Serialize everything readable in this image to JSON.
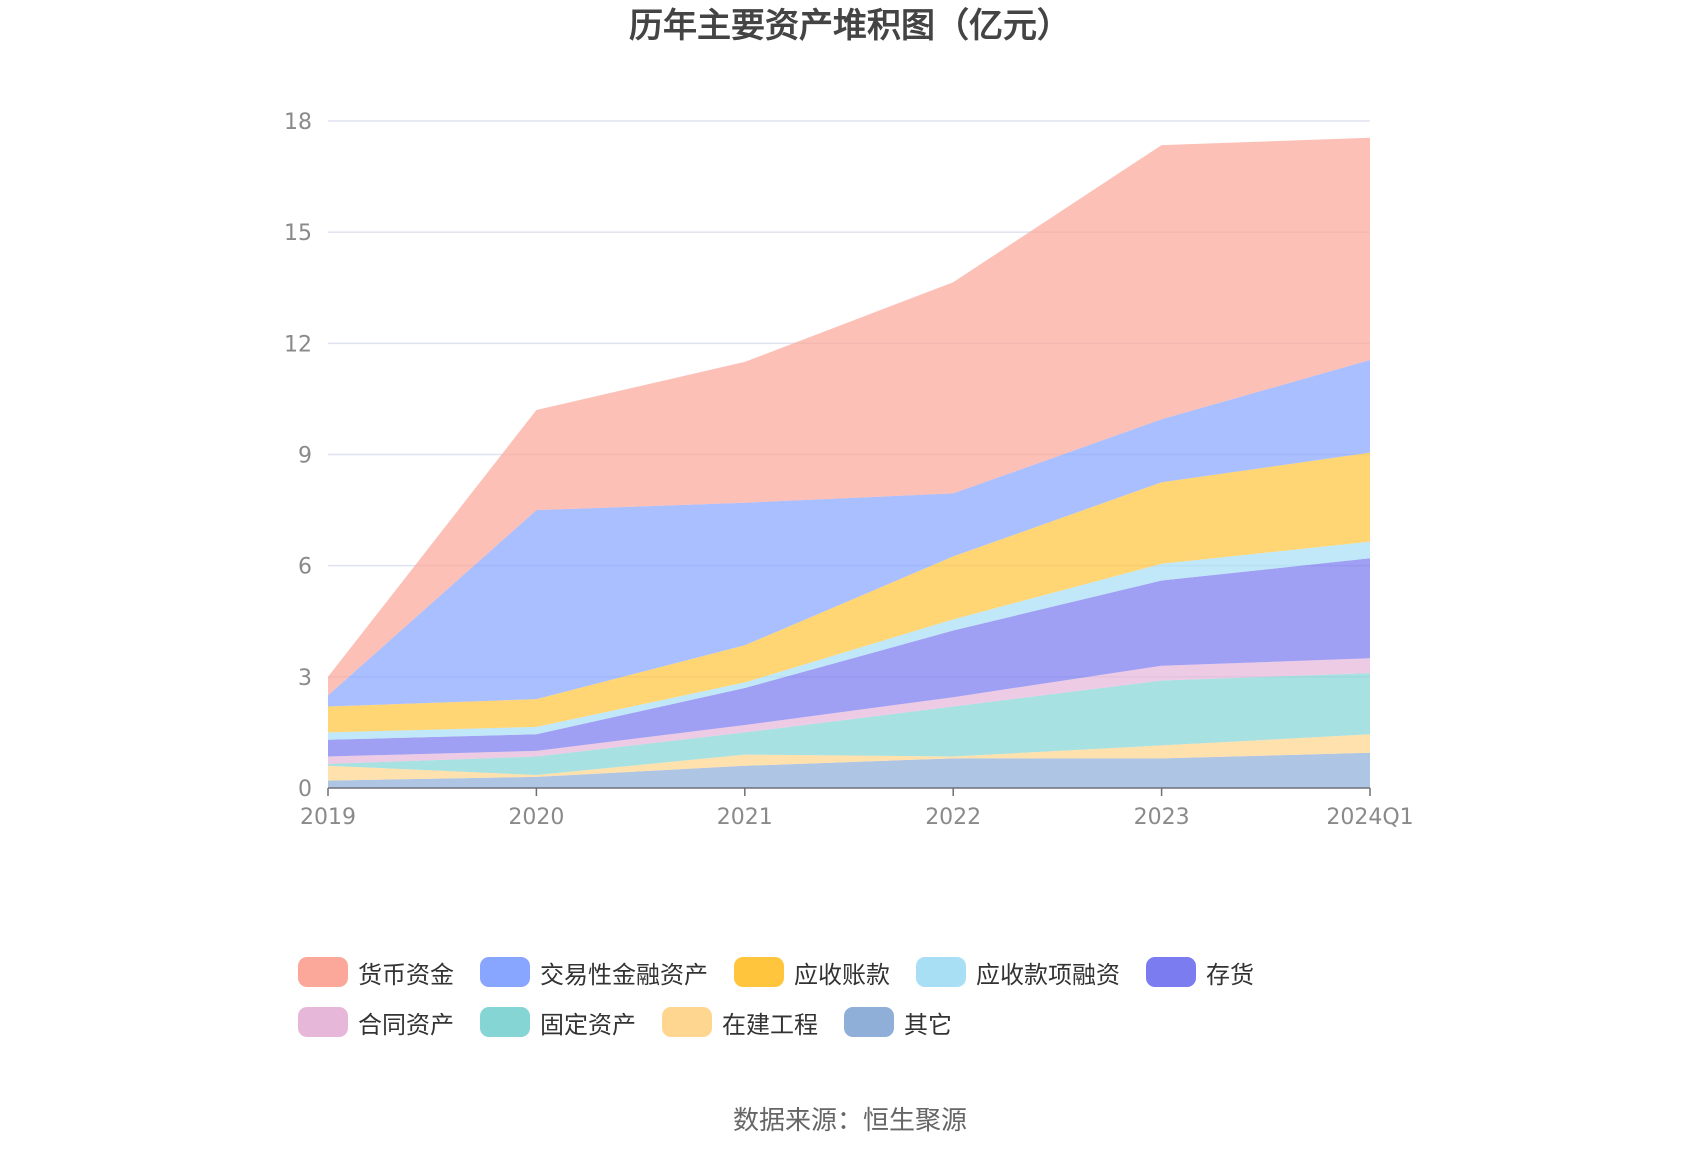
{
  "chart_data": {
    "type": "area",
    "stacked": true,
    "title": "历年主要资产堆积图（亿元）",
    "categories": [
      "2019",
      "2020",
      "2021",
      "2022",
      "2023",
      "2024Q1"
    ],
    "ylim": [
      0,
      18
    ],
    "yticks": [
      0,
      3,
      6,
      9,
      12,
      15,
      18
    ],
    "grid": true,
    "legend_position": "bottom",
    "series": [
      {
        "name": "其它",
        "color": "#8fafd9",
        "values": [
          0.2,
          0.3,
          0.6,
          0.8,
          0.8,
          0.95
        ]
      },
      {
        "name": "在建工程",
        "color": "#ffd68f",
        "values": [
          0.4,
          0.05,
          0.3,
          0.05,
          0.35,
          0.5
        ]
      },
      {
        "name": "固定资产",
        "color": "#86d5d5",
        "values": [
          0.05,
          0.5,
          0.6,
          1.35,
          1.75,
          1.65
        ]
      },
      {
        "name": "合同资产",
        "color": "#e6b7d9",
        "values": [
          0.2,
          0.15,
          0.2,
          0.25,
          0.4,
          0.4
        ]
      },
      {
        "name": "存货",
        "color": "#7a7cf0",
        "values": [
          0.45,
          0.45,
          1.0,
          1.8,
          2.3,
          2.7
        ]
      },
      {
        "name": "应收款项融资",
        "color": "#a9dff5",
        "values": [
          0.2,
          0.2,
          0.15,
          0.3,
          0.45,
          0.45
        ]
      },
      {
        "name": "应收账款",
        "color": "#ffc63d",
        "values": [
          0.7,
          0.75,
          1.0,
          1.7,
          2.2,
          2.4
        ]
      },
      {
        "name": "交易性金融资产",
        "color": "#88a6ff",
        "values": [
          0.3,
          5.1,
          3.85,
          1.7,
          1.7,
          2.5
        ]
      },
      {
        "name": "货币资金",
        "color": "#fba89a",
        "values": [
          0.5,
          2.7,
          3.8,
          5.7,
          7.4,
          6.0
        ]
      }
    ]
  },
  "legend_order": [
    "货币资金",
    "交易性金融资产",
    "应收账款",
    "应收款项融资",
    "存货",
    "合同资产",
    "固定资产",
    "在建工程",
    "其它"
  ],
  "source": "数据来源：恒生聚源"
}
